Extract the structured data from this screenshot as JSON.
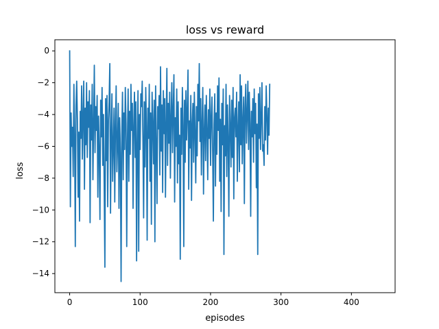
{
  "chart_data": {
    "type": "line",
    "title": "loss vs reward",
    "xlabel": "episodes",
    "ylabel": "loss",
    "xlim": [
      -21,
      462
    ],
    "ylim": [
      -15.2,
      0.7
    ],
    "xticks": [
      0,
      100,
      200,
      300,
      400
    ],
    "yticks": [
      0,
      -2,
      -4,
      -6,
      -8,
      -10,
      -12,
      -14
    ],
    "ytick_labels": [
      "0",
      "−2",
      "−4",
      "−6",
      "−8",
      "−10",
      "−12",
      "−14"
    ],
    "grid": false,
    "series": [
      {
        "color": "#1f77b4",
        "x_start": 0,
        "x_step": 1,
        "values": [
          0.0,
          -9.8,
          -3.9,
          -6.0,
          -4.8,
          -7.9,
          -2.1,
          -5.2,
          -12.3,
          -3.4,
          -1.9,
          -4.3,
          -9.2,
          -5.1,
          -10.7,
          -3.8,
          -5.5,
          -2.2,
          -6.8,
          -4.1,
          -1.9,
          -8.7,
          -3.6,
          -5.9,
          -2.0,
          -6.7,
          -3.2,
          -4.8,
          -2.5,
          -10.8,
          -3.4,
          -5.6,
          -2.1,
          -8.1,
          -4.7,
          -0.9,
          -6.4,
          -3.5,
          -5.0,
          -2.8,
          -9.2,
          -4.1,
          -6.3,
          -10.6,
          -3.1,
          -5.4,
          -2.3,
          -7.2,
          -4.0,
          -8.4,
          -13.6,
          -3.0,
          -6.9,
          -2.8,
          -9.8,
          -4.4,
          -3.2,
          -0.8,
          -10.2,
          -5.5,
          -2.7,
          -8.2,
          -6.0,
          -3.6,
          -9.5,
          -4.7,
          -2.2,
          -7.6,
          -5.8,
          -3.3,
          -9.9,
          -4.2,
          -6.4,
          -14.5,
          -5.3,
          -2.6,
          -8.1,
          -3.9,
          -6.2,
          -2.3,
          -4.6,
          -12.3,
          -5.7,
          -2.4,
          -8.2,
          -3.8,
          -6.5,
          -2.1,
          -5.0,
          -3.3,
          -9.9,
          -4.7,
          -2.6,
          -6.7,
          -3.2,
          -13.2,
          -5.8,
          -2.5,
          -12.6,
          -4.0,
          -6.2,
          -2.7,
          -3.5,
          -1.9,
          -5.6,
          -10.5,
          -3.2,
          -7.3,
          -2.3,
          -4.8,
          -11.9,
          -3.6,
          -5.5,
          -2.1,
          -8.2,
          -3.9,
          -10.9,
          -2.6,
          -4.6,
          -7.1,
          -3.1,
          -12.0,
          -2.2,
          -5.9,
          -9.6,
          -3.5,
          -4.9,
          -2.8,
          -7.8,
          -1.0,
          -6.3,
          -3.4,
          -8.9,
          -2.5,
          -5.2,
          -3.0,
          -9.2,
          -4.5,
          -1.1,
          -7.2,
          -3.3,
          -5.8,
          -2.6,
          -8.0,
          -4.1,
          -2.0,
          -6.4,
          -3.7,
          -1.5,
          -9.5,
          -4.2,
          -6.0,
          -2.4,
          -8.3,
          -3.2,
          -7.1,
          -5.3,
          -13.1,
          -3.6,
          -6.5,
          -2.3,
          -4.7,
          -12.3,
          -3.1,
          -7.0,
          -2.5,
          -5.6,
          -3.9,
          -1.2,
          -8.7,
          -4.4,
          -6.1,
          -2.8,
          -9.4,
          -4.6,
          -3.3,
          -7.0,
          -2.6,
          -5.2,
          -8.3,
          -3.5,
          -6.6,
          -2.1,
          -4.4,
          -0.8,
          -5.7,
          -3.0,
          -7.8,
          -4.5,
          -2.3,
          -9.0,
          -5.1,
          -3.4,
          -6.9,
          -2.8,
          -4.9,
          -8.1,
          -3.7,
          -5.5,
          -2.4,
          -7.2,
          -4.2,
          -2.9,
          -6.3,
          -10.7,
          -4.6,
          -2.7,
          -8.5,
          -3.9,
          -6.5,
          -2.2,
          -5.0,
          -1.7,
          -8.2,
          -4.3,
          -10.1,
          -3.3,
          -5.9,
          -2.4,
          -12.8,
          -4.7,
          -6.6,
          -2.1,
          -7.9,
          -3.4,
          -5.6,
          -10.4,
          -2.8,
          -4.7,
          -7.3,
          -3.1,
          -6.7,
          -2.3,
          -9.3,
          -4.2,
          -3.6,
          -5.4,
          -2.6,
          -8.2,
          -4.9,
          -3.2,
          -7.6,
          -1.5,
          -5.9,
          -2.2,
          -7.1,
          -4.4,
          -2.9,
          -9.6,
          -3.6,
          -2.1,
          -5.8,
          -4.0,
          -1.9,
          -6.2,
          -2.6,
          -4.6,
          -10.4,
          -3.8,
          -5.4,
          -3.0,
          -7.0,
          -2.4,
          -5.2,
          -3.3,
          -8.6,
          -4.6,
          -12.8,
          -2.7,
          -5.5,
          -2.3,
          -6.2,
          -4.2,
          -2.0,
          -6.3,
          -5.9,
          -7.2,
          -3.5,
          -5.6,
          -2.2,
          -4.1,
          -6.5,
          -3.6,
          -5.3,
          -2.1
        ]
      }
    ]
  }
}
